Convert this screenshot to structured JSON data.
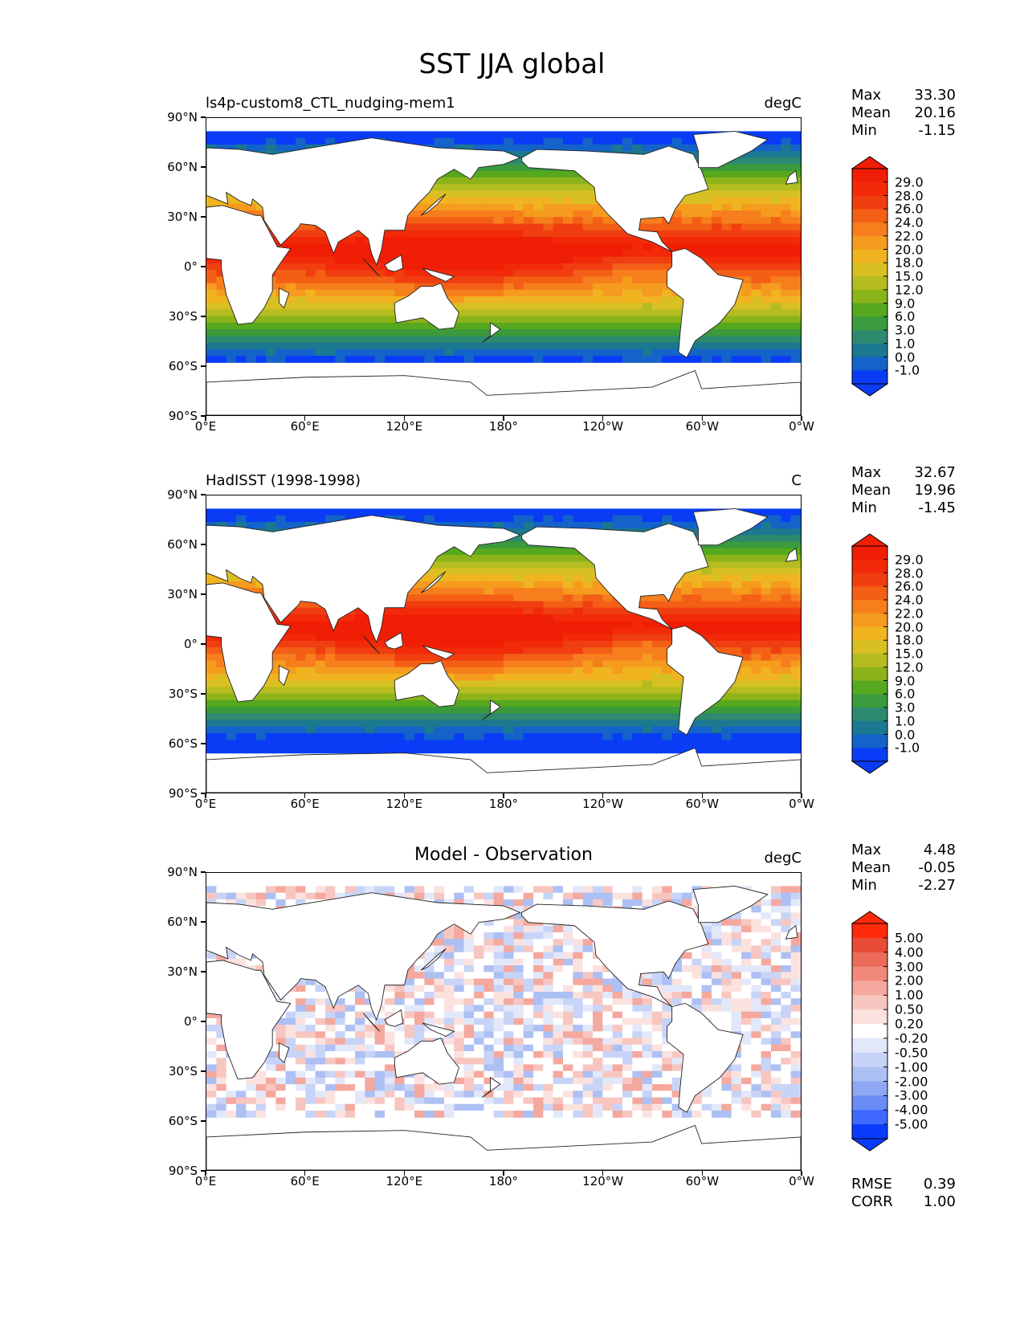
{
  "title": "SST JJA global",
  "lat_labels": [
    "90°N",
    "60°N",
    "30°N",
    "0°",
    "30°S",
    "60°S",
    "90°S"
  ],
  "lon_labels": [
    "0°E",
    "60°E",
    "120°E",
    "180°",
    "120°W",
    "60°W",
    "0°W"
  ],
  "panels": [
    {
      "title": "ls4p-custom8_CTL_nudging-mem1",
      "units": "degC",
      "stats": {
        "max_label": "Max",
        "max": "33.30",
        "mean_label": "Mean",
        "mean": "20.16",
        "min_label": "Min",
        "min": "-1.15"
      },
      "levels": [
        "29.0",
        "28.0",
        "26.0",
        "24.0",
        "22.0",
        "20.0",
        "18.0",
        "15.0",
        "12.0",
        "9.0",
        "6.0",
        "3.0",
        "1.0",
        "0.0",
        "-1.0"
      ]
    },
    {
      "title": "HadISST (1998-1998)",
      "units": "C",
      "stats": {
        "max_label": "Max",
        "max": "32.67",
        "mean_label": "Mean",
        "mean": "19.96",
        "min_label": "Min",
        "min": "-1.45"
      },
      "levels": [
        "29.0",
        "28.0",
        "26.0",
        "24.0",
        "22.0",
        "20.0",
        "18.0",
        "15.0",
        "12.0",
        "9.0",
        "6.0",
        "3.0",
        "1.0",
        "0.0",
        "-1.0"
      ]
    },
    {
      "title": "Model - Observation",
      "units": "degC",
      "stats": {
        "max_label": "Max",
        "max": "4.48",
        "mean_label": "Mean",
        "mean": "-0.05",
        "min_label": "Min",
        "min": "-2.27"
      },
      "levels": [
        "5.00",
        "4.00",
        "3.00",
        "2.00",
        "1.00",
        "0.50",
        "0.20",
        "-0.20",
        "-0.50",
        "-1.00",
        "-2.00",
        "-3.00",
        "-4.00",
        "-5.00"
      ],
      "metrics": {
        "rmse_label": "RMSE",
        "rmse": "0.39",
        "corr_label": "CORR",
        "corr": "1.00"
      }
    }
  ],
  "colors": {
    "sst": [
      "#0a3cf5",
      "#1463c8",
      "#1a7890",
      "#2e8a6e",
      "#3a9a3c",
      "#56a81e",
      "#8cb41a",
      "#b4bc20",
      "#d8c023",
      "#f0b420",
      "#f59b1e",
      "#f77e1c",
      "#f45f16",
      "#f03e10",
      "#f22a0a",
      "#f01e05"
    ],
    "diff": [
      "#0a3cff",
      "#3f68ff",
      "#6a8cf5",
      "#8ea8f2",
      "#adc0f4",
      "#c8d4f7",
      "#e2e8fa",
      "#ffffff",
      "#fbe2df",
      "#f8c6c0",
      "#f5a89e",
      "#f18a7c",
      "#ec6a58",
      "#e84a36",
      "#ff2a0a"
    ]
  }
}
